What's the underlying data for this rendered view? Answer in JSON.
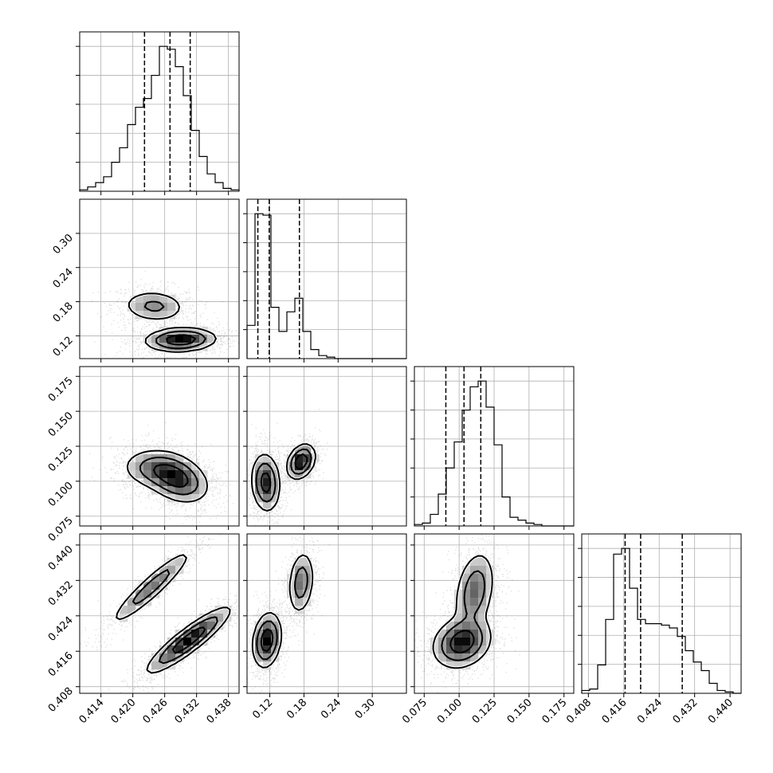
{
  "chart_data": {
    "type": "corner",
    "title": "",
    "grid": true,
    "n_params": 4,
    "param_labels": [
      "",
      "",
      "",
      ""
    ],
    "ranges": [
      [
        0.41,
        0.44
      ],
      [
        0.08,
        0.36
      ],
      [
        0.068,
        0.182
      ],
      [
        0.4065,
        0.4425
      ]
    ],
    "ticks": [
      {
        "values": [
          0.414,
          0.42,
          0.426,
          0.432,
          0.438
        ],
        "labels": [
          "0.414",
          "0.420",
          "0.426",
          "0.432",
          "0.438"
        ]
      },
      {
        "values": [
          0.12,
          0.18,
          0.24,
          0.3
        ],
        "labels": [
          "0.12",
          "0.18",
          "0.24",
          "0.30"
        ]
      },
      {
        "values": [
          0.075,
          0.1,
          0.125,
          0.15,
          0.175
        ],
        "labels": [
          "0.075",
          "0.100",
          "0.125",
          "0.150",
          "0.175"
        ]
      },
      {
        "values": [
          0.408,
          0.416,
          0.424,
          0.432,
          0.44
        ],
        "labels": [
          "0.408",
          "0.416",
          "0.424",
          "0.432",
          "0.440"
        ]
      }
    ],
    "histograms": [
      {
        "param": 0,
        "bin_range": [
          0.41,
          0.44
        ],
        "counts": [
          1,
          3,
          6,
          10,
          20,
          30,
          46,
          58,
          64,
          80,
          100,
          98,
          86,
          66,
          42,
          24,
          12,
          6,
          2,
          1
        ],
        "quantiles": [
          0.4222,
          0.427,
          0.4308
        ]
      },
      {
        "param": 1,
        "bin_range": [
          0.08,
          0.36
        ],
        "counts": [
          22,
          96,
          95,
          34,
          18,
          31,
          40,
          18,
          6,
          2,
          1,
          0,
          0,
          0,
          0,
          0,
          0,
          0,
          0,
          0
        ],
        "quantiles": [
          0.099,
          0.119,
          0.172
        ]
      },
      {
        "param": 2,
        "bin_range": [
          0.068,
          0.182
        ],
        "counts": [
          1,
          2,
          8,
          22,
          40,
          58,
          80,
          96,
          100,
          82,
          56,
          20,
          6,
          4,
          2,
          1,
          0,
          0,
          0,
          0
        ],
        "quantiles": [
          0.0905,
          0.1035,
          0.1155
        ]
      },
      {
        "param": 3,
        "bin_range": [
          0.4065,
          0.4425
        ],
        "counts": [
          2,
          3,
          20,
          52,
          98,
          102,
          74,
          52,
          49,
          49,
          48,
          46,
          40,
          30,
          22,
          16,
          7,
          2,
          1,
          0
        ],
        "quantiles": [
          0.4163,
          0.4198,
          0.4292
        ]
      }
    ],
    "pairs": [
      {
        "x": 0,
        "y": 1,
        "modes": [
          {
            "cx": 0.424,
            "cy": 0.172,
            "sx": 0.003,
            "sy": 0.014,
            "rho": -0.1,
            "w": 0.35
          },
          {
            "cx": 0.429,
            "cy": 0.113,
            "sx": 0.0032,
            "sy": 0.01,
            "rho": 0.1,
            "w": 0.65
          }
        ]
      },
      {
        "x": 0,
        "y": 2,
        "modes": [
          {
            "cx": 0.4245,
            "cy": 0.109,
            "sx": 0.0032,
            "sy": 0.007,
            "rho": -0.1,
            "w": 0.4
          },
          {
            "cx": 0.4285,
            "cy": 0.101,
            "sx": 0.0028,
            "sy": 0.008,
            "rho": -0.3,
            "w": 0.6
          }
        ]
      },
      {
        "x": 1,
        "y": 2,
        "modes": [
          {
            "cx": 0.113,
            "cy": 0.099,
            "sx": 0.012,
            "sy": 0.01,
            "rho": -0.1,
            "w": 0.6
          },
          {
            "cx": 0.175,
            "cy": 0.114,
            "sx": 0.012,
            "sy": 0.006,
            "rho": 0.3,
            "w": 0.4
          }
        ]
      },
      {
        "x": 0,
        "y": 3,
        "modes": [
          {
            "cx": 0.4235,
            "cy": 0.4305,
            "sx": 0.0038,
            "sy": 0.0042,
            "rho": 0.93,
            "w": 0.35
          },
          {
            "cx": 0.4305,
            "cy": 0.4185,
            "sx": 0.0038,
            "sy": 0.0036,
            "rho": 0.9,
            "w": 0.65
          }
        ]
      },
      {
        "x": 1,
        "y": 3,
        "modes": [
          {
            "cx": 0.115,
            "cy": 0.4185,
            "sx": 0.012,
            "sy": 0.003,
            "rho": 0.2,
            "w": 0.62
          },
          {
            "cx": 0.175,
            "cy": 0.4315,
            "sx": 0.011,
            "sy": 0.0035,
            "rho": 0.2,
            "w": 0.38
          }
        ]
      },
      {
        "x": 2,
        "y": 3,
        "modes": [
          {
            "cx": 0.102,
            "cy": 0.418,
            "sx": 0.01,
            "sy": 0.0028,
            "rho": 0.2,
            "w": 0.6
          },
          {
            "cx": 0.111,
            "cy": 0.4295,
            "sx": 0.007,
            "sy": 0.0045,
            "rho": 0.3,
            "w": 0.4
          }
        ]
      }
    ]
  }
}
